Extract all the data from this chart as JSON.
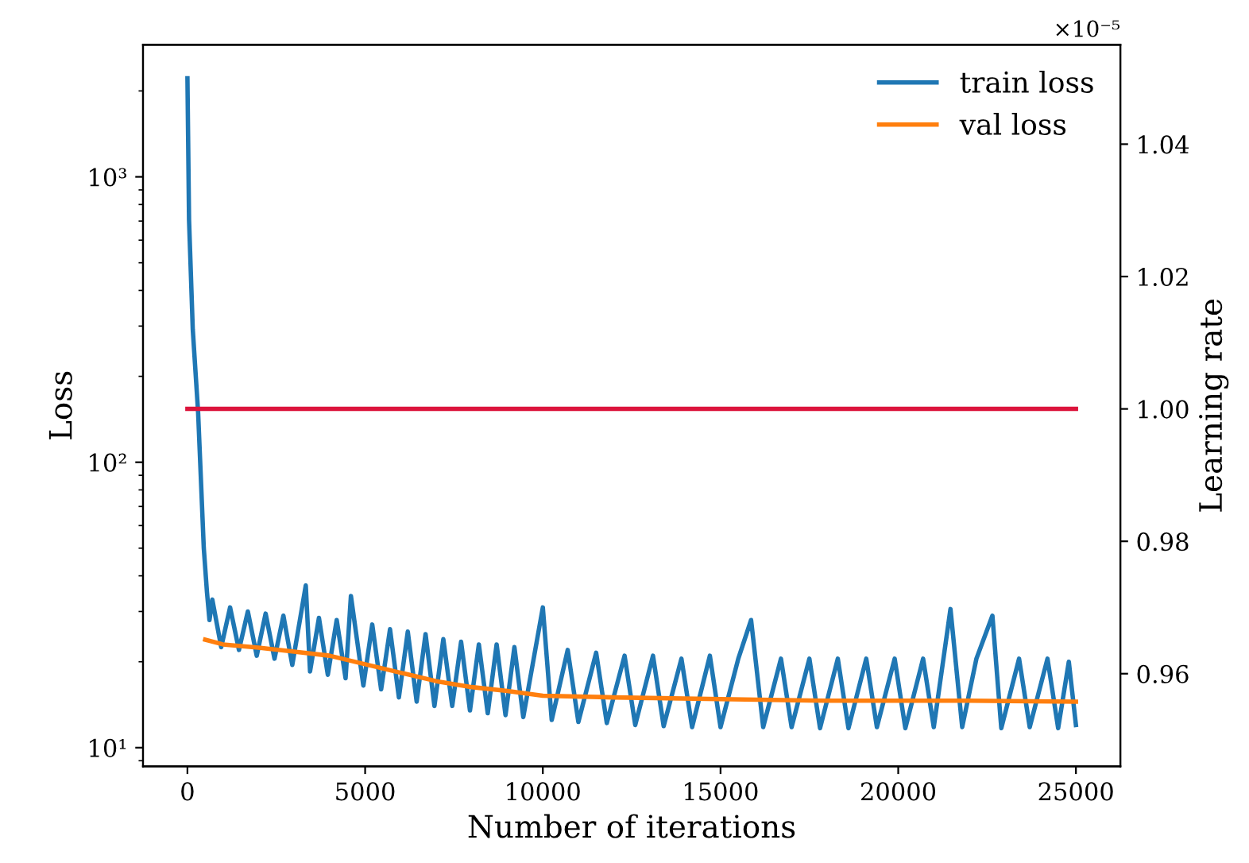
{
  "chart_data": {
    "type": "line",
    "xlabel": "Number of iterations",
    "ylabel": "Loss",
    "y2label": "Learning rate",
    "log": "y",
    "grid": false,
    "legend": "top right",
    "marker": "none",
    "line_style": "solid",
    "xlim": [
      -1250,
      26250
    ],
    "xticks": [
      0,
      5000,
      10000,
      15000,
      20000,
      25000
    ],
    "ylim": [
      8.6,
      2900
    ],
    "yticks": [
      {
        "value": 10,
        "label": "10¹"
      },
      {
        "value": 100,
        "label": "10²"
      },
      {
        "value": 1000,
        "label": "10³"
      }
    ],
    "y2lim": [
      0.946,
      1.055
    ],
    "y2ticks": [
      0.96,
      0.98,
      {
        "value": 1,
        "label": "1.00"
      },
      1.02,
      1.04
    ],
    "annotations": [
      "×10⁻⁵"
    ],
    "series": [
      {
        "name": "train loss",
        "color": "#1f77b4",
        "x": [
          0,
          45,
          150,
          300,
          460,
          550,
          620,
          700,
          950,
          1200,
          1450,
          1700,
          1950,
          2200,
          2450,
          2700,
          2950,
          3330,
          3450,
          3700,
          3950,
          4200,
          4450,
          4600,
          4950,
          5200,
          5450,
          5700,
          5950,
          6200,
          6450,
          6700,
          6950,
          7200,
          7450,
          7700,
          7950,
          8200,
          8450,
          8700,
          8950,
          9200,
          9450,
          10000,
          10250,
          10700,
          11000,
          11500,
          11800,
          12300,
          12600,
          13100,
          13400,
          13900,
          14200,
          14700,
          15000,
          15500,
          15860,
          16200,
          16700,
          17000,
          17500,
          17800,
          18300,
          18600,
          19100,
          19400,
          19900,
          20200,
          20700,
          21000,
          21470,
          21800,
          22200,
          22650,
          22900,
          23400,
          23700,
          24200,
          24500,
          24800,
          25000
        ],
        "values": [
          2214,
          708,
          292,
          150,
          50,
          35,
          28,
          33,
          22.5,
          31,
          22,
          30,
          21,
          29.5,
          20.5,
          29,
          19.5,
          37,
          18.5,
          28.5,
          18,
          28,
          17.5,
          34,
          16.5,
          27,
          16,
          26,
          15,
          25.5,
          14.5,
          25,
          14,
          24,
          14,
          23.5,
          13.5,
          23,
          13.2,
          23,
          13,
          22.5,
          12.8,
          31,
          12.5,
          22,
          12.3,
          21.5,
          12.2,
          21,
          12,
          21,
          11.9,
          20.5,
          11.8,
          21,
          11.8,
          20.5,
          28,
          11.8,
          20.5,
          11.8,
          20.5,
          11.7,
          20.5,
          11.7,
          20.5,
          11.8,
          20.5,
          11.7,
          20.5,
          11.8,
          30.6,
          11.8,
          20.5,
          29,
          11.7,
          20.5,
          11.8,
          20.5,
          11.7,
          20,
          12
        ]
      },
      {
        "name": "val loss",
        "color": "#ff7f0e",
        "x": [
          500,
          1000,
          2000,
          3000,
          4000,
          5000,
          6000,
          7000,
          8000,
          9000,
          10000,
          12000,
          15000,
          18000,
          20000,
          22000,
          25000
        ],
        "values": [
          23.9,
          23,
          22.4,
          21.7,
          21,
          19.6,
          18.3,
          17.1,
          16.3,
          15.8,
          15.2,
          15,
          14.8,
          14.6,
          14.6,
          14.6,
          14.5
        ]
      },
      {
        "color": "#dc143c",
        "axis": "y2",
        "x": [
          0,
          25000
        ],
        "values": [
          1,
          1
        ]
      }
    ]
  }
}
